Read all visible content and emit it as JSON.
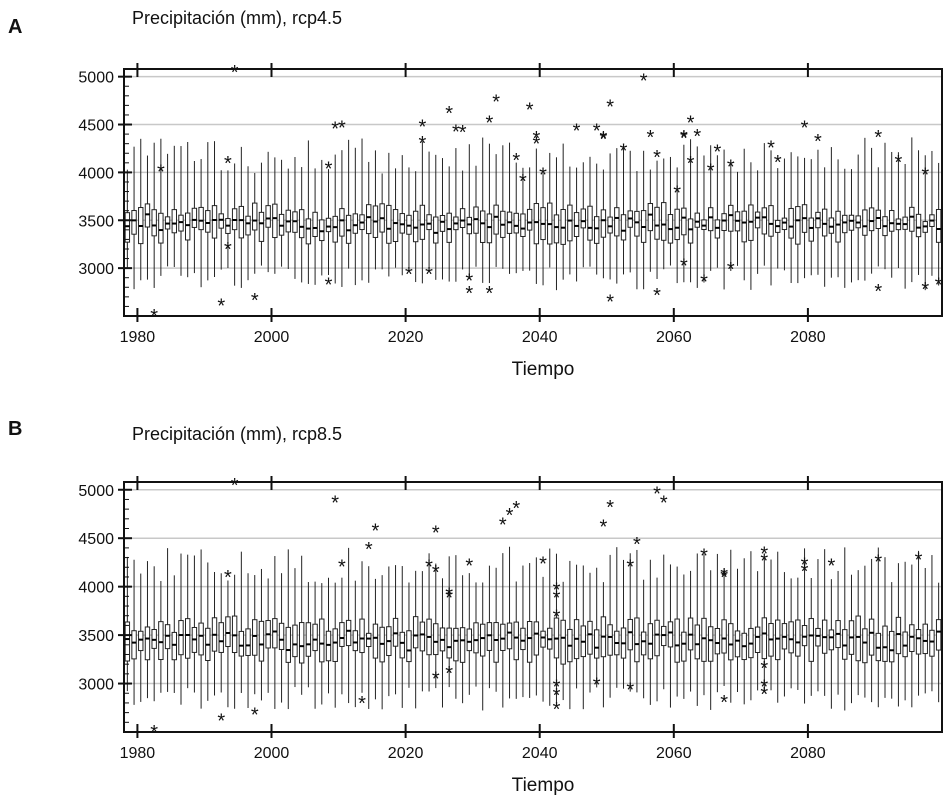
{
  "chart_data": [
    {
      "type": "boxplot",
      "panel_letter": "A",
      "title": "Precipitación (mm), rcp4.5",
      "xlabel": "Tiempo",
      "ylabel": "",
      "xlim": [
        1978,
        2100
      ],
      "ylim": [
        2500,
        5080
      ],
      "x_ticks": [
        1980,
        2000,
        2020,
        2040,
        2060,
        2080
      ],
      "y_ticks": [
        3000,
        3500,
        4000,
        4500,
        5000
      ],
      "grid": "horizontal",
      "years": [
        1978,
        2099
      ],
      "typical_box": {
        "q1": 3350,
        "median": 3460,
        "q3": 3580,
        "whisker_low": 2900,
        "whisker_high": 4100
      },
      "outliers": [
        {
          "x": 1982,
          "y": 2510
        },
        {
          "x": 1983,
          "y": 4020
        },
        {
          "x": 1992,
          "y": 2620
        },
        {
          "x": 1993,
          "y": 4110
        },
        {
          "x": 1993,
          "y": 3210
        },
        {
          "x": 1994,
          "y": 5060
        },
        {
          "x": 1997,
          "y": 2680
        },
        {
          "x": 2008,
          "y": 2840
        },
        {
          "x": 2008,
          "y": 4050
        },
        {
          "x": 2009,
          "y": 4470
        },
        {
          "x": 2010,
          "y": 4480
        },
        {
          "x": 2020,
          "y": 2950
        },
        {
          "x": 2022,
          "y": 4490
        },
        {
          "x": 2022,
          "y": 4320
        },
        {
          "x": 2023,
          "y": 2950
        },
        {
          "x": 2026,
          "y": 4630
        },
        {
          "x": 2027,
          "y": 4440
        },
        {
          "x": 2028,
          "y": 4430
        },
        {
          "x": 2029,
          "y": 2750
        },
        {
          "x": 2029,
          "y": 2880
        },
        {
          "x": 2032,
          "y": 4530
        },
        {
          "x": 2032,
          "y": 2750
        },
        {
          "x": 2033,
          "y": 4750
        },
        {
          "x": 2036,
          "y": 4140
        },
        {
          "x": 2037,
          "y": 3920
        },
        {
          "x": 2038,
          "y": 4670
        },
        {
          "x": 2039,
          "y": 4370
        },
        {
          "x": 2039,
          "y": 4310
        },
        {
          "x": 2040,
          "y": 3990
        },
        {
          "x": 2045,
          "y": 4450
        },
        {
          "x": 2048,
          "y": 4450
        },
        {
          "x": 2049,
          "y": 4360
        },
        {
          "x": 2049,
          "y": 4370
        },
        {
          "x": 2050,
          "y": 4700
        },
        {
          "x": 2050,
          "y": 2660
        },
        {
          "x": 2052,
          "y": 4240
        },
        {
          "x": 2055,
          "y": 4970
        },
        {
          "x": 2056,
          "y": 4380
        },
        {
          "x": 2057,
          "y": 4170
        },
        {
          "x": 2057,
          "y": 2730
        },
        {
          "x": 2060,
          "y": 3800
        },
        {
          "x": 2061,
          "y": 4380
        },
        {
          "x": 2061,
          "y": 4370
        },
        {
          "x": 2061,
          "y": 3040
        },
        {
          "x": 2062,
          "y": 4530
        },
        {
          "x": 2062,
          "y": 4110
        },
        {
          "x": 2063,
          "y": 4390
        },
        {
          "x": 2064,
          "y": 2870
        },
        {
          "x": 2065,
          "y": 4030
        },
        {
          "x": 2066,
          "y": 4230
        },
        {
          "x": 2068,
          "y": 4070
        },
        {
          "x": 2068,
          "y": 3000
        },
        {
          "x": 2074,
          "y": 4270
        },
        {
          "x": 2075,
          "y": 4120
        },
        {
          "x": 2079,
          "y": 4480
        },
        {
          "x": 2081,
          "y": 4340
        },
        {
          "x": 2090,
          "y": 4380
        },
        {
          "x": 2090,
          "y": 2770
        },
        {
          "x": 2093,
          "y": 4120
        },
        {
          "x": 2097,
          "y": 3990
        },
        {
          "x": 2097,
          "y": 2790
        },
        {
          "x": 2099,
          "y": 2840
        }
      ]
    },
    {
      "type": "boxplot",
      "panel_letter": "B",
      "title": "Precipitación (mm), rcp8.5",
      "xlabel": "Tiempo",
      "ylabel": "",
      "xlim": [
        1978,
        2100
      ],
      "ylim": [
        2500,
        5080
      ],
      "x_ticks": [
        1980,
        2000,
        2020,
        2040,
        2060,
        2080
      ],
      "y_ticks": [
        3000,
        3500,
        4000,
        4500,
        5000
      ],
      "grid": "horizontal",
      "years": [
        1978,
        2099
      ],
      "typical_box": {
        "q1": 3300,
        "median": 3440,
        "q3": 3600,
        "whisker_low": 2850,
        "whisker_high": 4150
      },
      "outliers": [
        {
          "x": 1982,
          "y": 2510
        },
        {
          "x": 1992,
          "y": 2630
        },
        {
          "x": 1993,
          "y": 4110
        },
        {
          "x": 1994,
          "y": 5060
        },
        {
          "x": 1997,
          "y": 2690
        },
        {
          "x": 2009,
          "y": 4880
        },
        {
          "x": 2010,
          "y": 4220
        },
        {
          "x": 2013,
          "y": 2810
        },
        {
          "x": 2014,
          "y": 4400
        },
        {
          "x": 2015,
          "y": 4590
        },
        {
          "x": 2023,
          "y": 4220
        },
        {
          "x": 2024,
          "y": 4160
        },
        {
          "x": 2024,
          "y": 4570
        },
        {
          "x": 2024,
          "y": 3060
        },
        {
          "x": 2026,
          "y": 3930
        },
        {
          "x": 2026,
          "y": 3900
        },
        {
          "x": 2026,
          "y": 3120
        },
        {
          "x": 2029,
          "y": 4230
        },
        {
          "x": 2034,
          "y": 4650
        },
        {
          "x": 2035,
          "y": 4750
        },
        {
          "x": 2036,
          "y": 4820
        },
        {
          "x": 2040,
          "y": 4250
        },
        {
          "x": 2042,
          "y": 3980
        },
        {
          "x": 2042,
          "y": 3900
        },
        {
          "x": 2042,
          "y": 3700
        },
        {
          "x": 2042,
          "y": 2980
        },
        {
          "x": 2042,
          "y": 2890
        },
        {
          "x": 2042,
          "y": 2750
        },
        {
          "x": 2048,
          "y": 3000
        },
        {
          "x": 2049,
          "y": 4630
        },
        {
          "x": 2050,
          "y": 4830
        },
        {
          "x": 2053,
          "y": 4220
        },
        {
          "x": 2053,
          "y": 2950
        },
        {
          "x": 2054,
          "y": 4450
        },
        {
          "x": 2057,
          "y": 4970
        },
        {
          "x": 2058,
          "y": 4880
        },
        {
          "x": 2064,
          "y": 4330
        },
        {
          "x": 2067,
          "y": 4110
        },
        {
          "x": 2067,
          "y": 4130
        },
        {
          "x": 2067,
          "y": 2820
        },
        {
          "x": 2073,
          "y": 4350
        },
        {
          "x": 2073,
          "y": 4280
        },
        {
          "x": 2073,
          "y": 3170
        },
        {
          "x": 2073,
          "y": 2980
        },
        {
          "x": 2073,
          "y": 2900
        },
        {
          "x": 2079,
          "y": 4240
        },
        {
          "x": 2079,
          "y": 4170
        },
        {
          "x": 2083,
          "y": 4230
        },
        {
          "x": 2090,
          "y": 4270
        },
        {
          "x": 2096,
          "y": 4290
        }
      ]
    }
  ]
}
